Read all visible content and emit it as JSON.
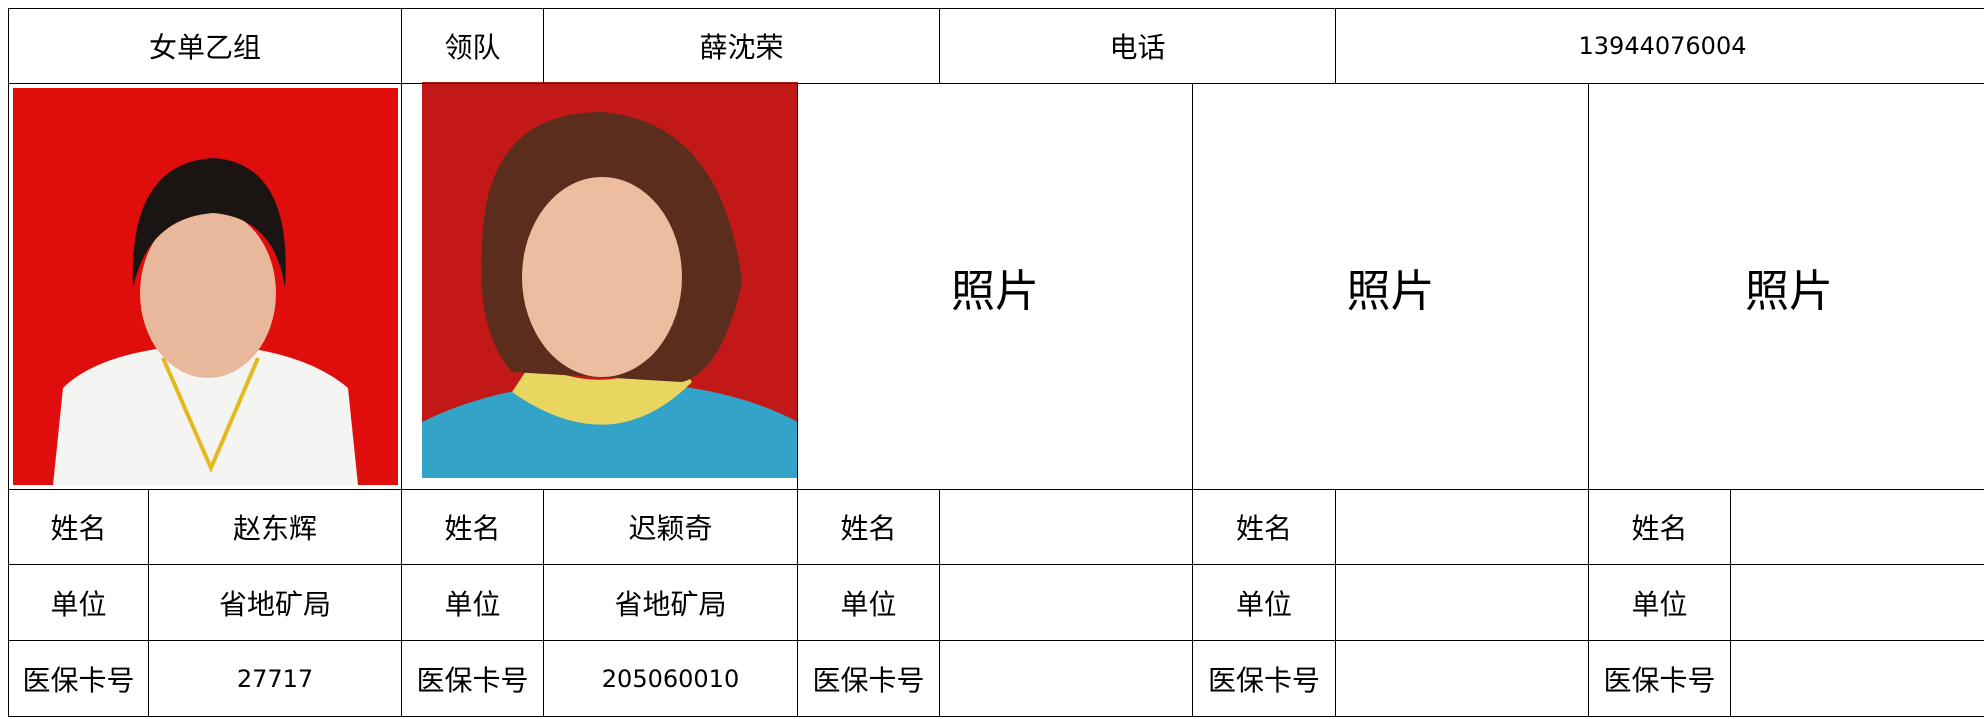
{
  "header": {
    "group": "女单乙组",
    "leader_label": "领队",
    "leader": "薛沈荣",
    "phone_label": "电话",
    "phone": "13944076004"
  },
  "photo_placeholders": [
    "照片",
    "照片",
    "照片"
  ],
  "players": [
    {
      "name_label": "姓名",
      "name": "赵东辉",
      "unit_label": "单位",
      "unit": "省地矿局",
      "card_label": "医保卡号",
      "card": "27717"
    },
    {
      "name_label": "姓名",
      "name": "迟颖奇",
      "unit_label": "单位",
      "unit": "省地矿局",
      "card_label": "医保卡号",
      "card": "205060010"
    },
    {
      "name_label": "姓名",
      "unit_label": "单位",
      "card_label": "医保卡号"
    },
    {
      "name_label": "姓名",
      "unit_label": "单位",
      "card_label": "医保卡号"
    },
    {
      "name_label": "姓名",
      "unit_label": "单位",
      "card_label": "医保卡号"
    }
  ]
}
